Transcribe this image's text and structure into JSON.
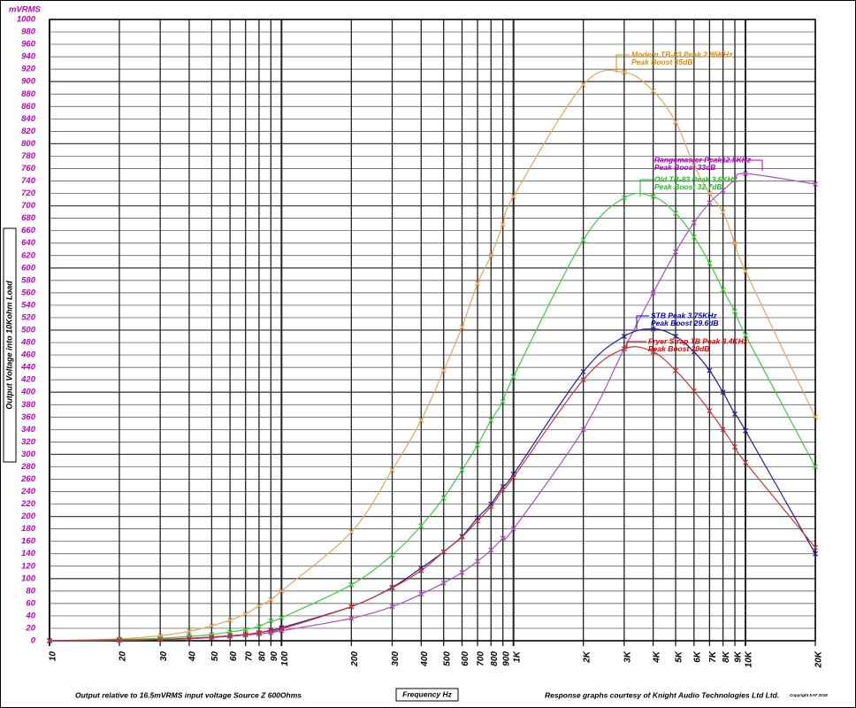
{
  "chart_data": {
    "type": "line",
    "y_unit": "mVRMS",
    "ylabel": "Output Voltage into 10Kohm Load",
    "xlabel": "Frequency Hz",
    "footer_left": "Output relative to 16.5mVRMS input voltage Source Z 600Ohms",
    "footer_right": "Response graphs courtesy of Knight Audio Technologies Ltd Ltd.",
    "copyright": "Copyright KAT 2018",
    "xscale": "log",
    "grid": true,
    "xlim": [
      10,
      20000
    ],
    "ylim": [
      0,
      1000
    ],
    "xticks": [
      10,
      20,
      30,
      40,
      50,
      60,
      70,
      80,
      90,
      100,
      200,
      300,
      400,
      500,
      600,
      700,
      800,
      900,
      {
        "value": 1000,
        "label": "1K"
      },
      {
        "value": 2000,
        "label": "2K"
      },
      {
        "value": 3000,
        "label": "3K"
      },
      {
        "value": 4000,
        "label": "4K"
      },
      {
        "value": 5000,
        "label": "5K"
      },
      {
        "value": 6000,
        "label": "6K"
      },
      {
        "value": 7000,
        "label": "7K"
      },
      {
        "value": 8000,
        "label": "8K"
      },
      {
        "value": 9000,
        "label": "9K"
      },
      {
        "value": 10000,
        "label": "10K"
      },
      {
        "value": 20000,
        "label": "20K"
      }
    ],
    "yticks": [
      0,
      20,
      40,
      60,
      80,
      100,
      120,
      140,
      160,
      180,
      200,
      220,
      240,
      260,
      280,
      300,
      320,
      340,
      360,
      380,
      400,
      420,
      440,
      460,
      480,
      500,
      520,
      540,
      560,
      580,
      600,
      620,
      640,
      660,
      680,
      700,
      720,
      740,
      760,
      780,
      800,
      820,
      840,
      860,
      880,
      900,
      920,
      940,
      960,
      980,
      1000
    ],
    "x": [
      10,
      20,
      30,
      40,
      50,
      60,
      70,
      80,
      90,
      100,
      200,
      300,
      400,
      500,
      600,
      700,
      800,
      900,
      1000,
      2000,
      3000,
      4000,
      5000,
      6000,
      7000,
      8000,
      9000,
      10000,
      20000
    ],
    "series": [
      {
        "name": "Modern TB-83",
        "color": "#e0a860",
        "label_color": "#e08a00",
        "annotation": [
          "Modern TB-83 Peak 2.95KHz",
          "Peak Boost 35dB"
        ],
        "values": [
          0,
          3,
          8,
          15,
          24,
          33,
          43,
          56,
          66,
          80,
          175,
          275,
          355,
          435,
          505,
          575,
          620,
          670,
          715,
          895,
          915,
          885,
          835,
          765,
          720,
          690,
          640,
          595,
          360
        ]
      },
      {
        "name": "Rangemaster",
        "color": "#b050c0",
        "label_color": "#b000c0",
        "annotation": [
          "Rangemaster Peak12.5KHz",
          "Peak Boost 33dB"
        ],
        "values": [
          0,
          1,
          2,
          3,
          5,
          7,
          9,
          11,
          13,
          16,
          36,
          55,
          75,
          93,
          110,
          128,
          146,
          165,
          180,
          340,
          470,
          560,
          626,
          673,
          705,
          725,
          742,
          752,
          735
        ]
      },
      {
        "name": "Old TB-83",
        "color": "#40cc40",
        "label_color": "#22bb22",
        "annotation": [
          "Old TB-83 Peak 3.6KHz",
          "Peak Boost 32.7dB"
        ],
        "values": [
          0,
          2,
          4,
          7,
          10,
          14,
          18,
          23,
          32,
          37,
          90,
          138,
          185,
          230,
          275,
          315,
          355,
          385,
          425,
          645,
          713,
          715,
          688,
          650,
          608,
          565,
          530,
          492,
          280
        ]
      },
      {
        "name": "STB",
        "color": "#2020a0",
        "label_color": "#0000cc",
        "annotation": [
          "STB Peak 3.75KHz",
          "Peak Boost 29.6dB"
        ],
        "values": [
          0,
          1,
          2,
          4,
          6,
          8,
          10,
          13,
          17,
          21,
          55,
          86,
          117,
          143,
          168,
          198,
          220,
          248,
          268,
          433,
          490,
          502,
          490,
          465,
          435,
          400,
          365,
          338,
          140
        ]
      },
      {
        "name": "Fryer Strap TB",
        "color": "#cc3333",
        "label_color": "#dd0000",
        "annotation": [
          "Fryer Strap TB Peak 3.4KHz",
          "Peak Boost 29dB"
        ],
        "values": [
          0,
          1,
          2,
          4,
          6,
          8,
          10,
          13,
          16,
          19,
          55,
          85,
          113,
          143,
          167,
          193,
          216,
          243,
          263,
          420,
          470,
          465,
          435,
          402,
          370,
          340,
          312,
          287,
          150
        ]
      }
    ]
  }
}
